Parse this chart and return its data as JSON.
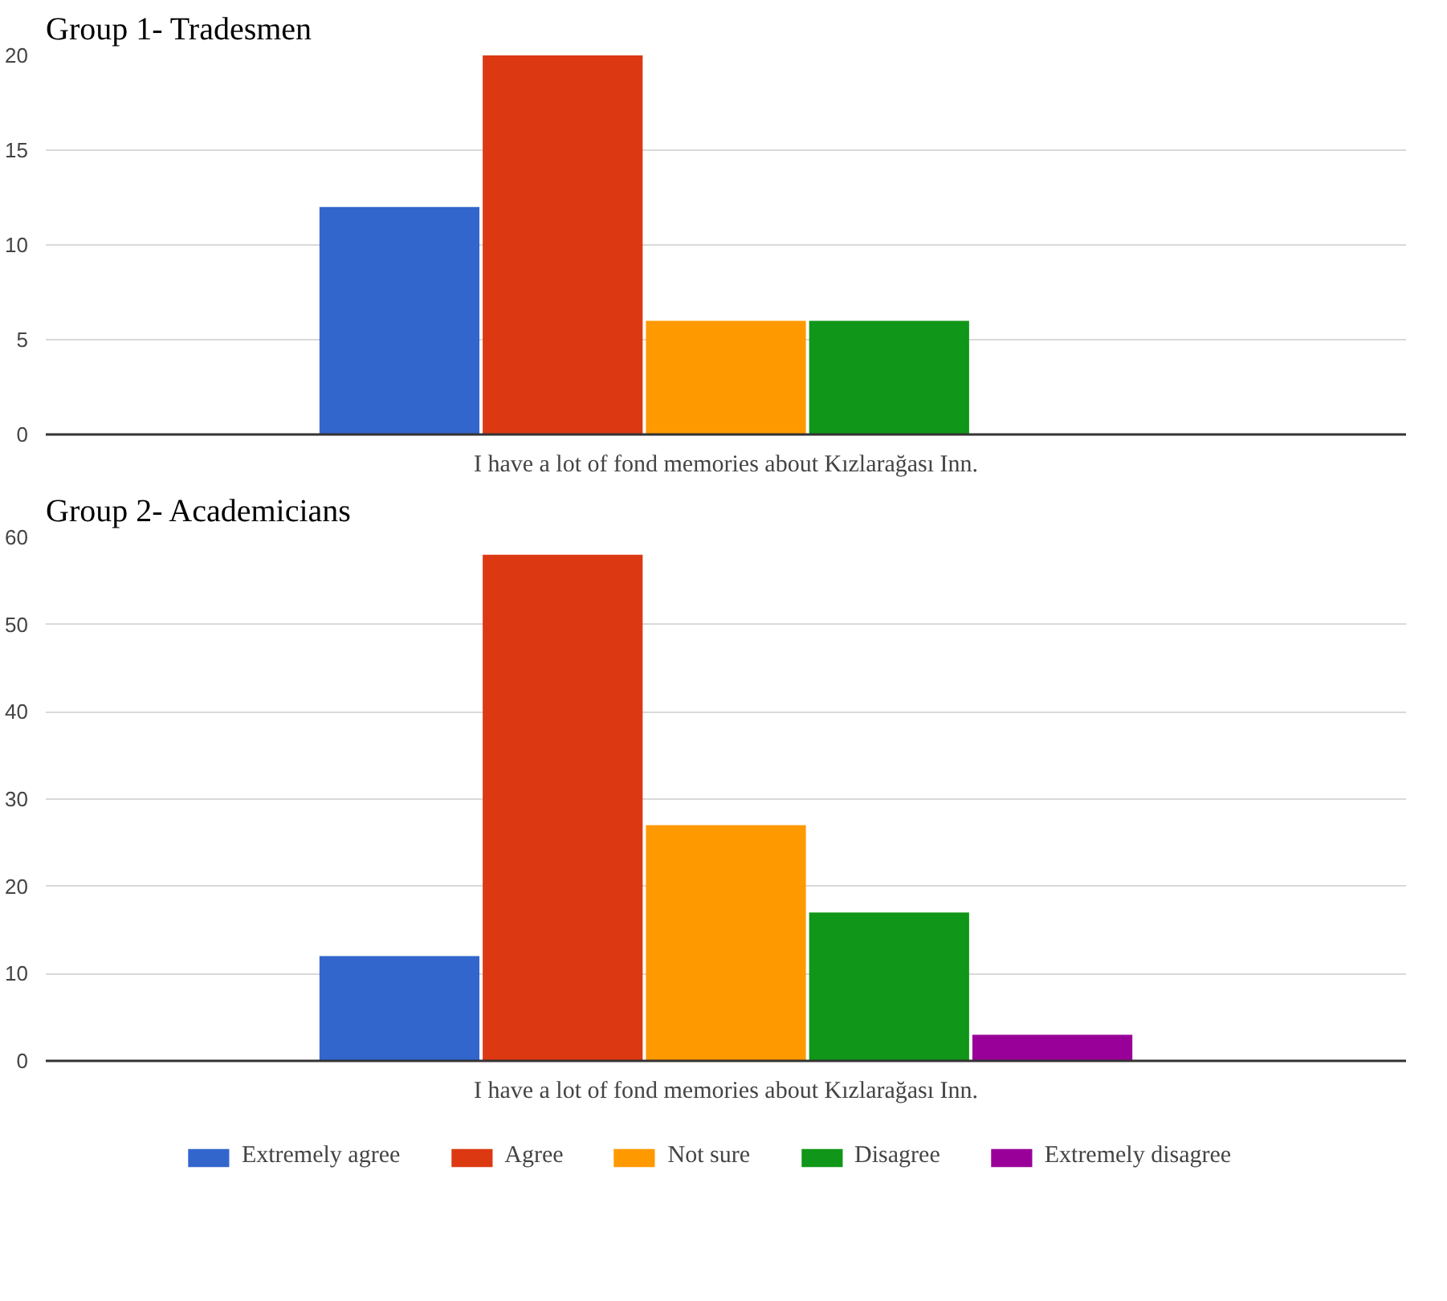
{
  "chart_data": [
    {
      "type": "bar",
      "title": "Group 1- Tradesmen",
      "categories": [
        "I have a lot of fond memories about Kızlarağası Inn."
      ],
      "ylim": [
        0,
        20
      ],
      "yticks": [
        0,
        5,
        10,
        15,
        20
      ],
      "grid": "y",
      "legend": false,
      "series": [
        {
          "color": "#3366cc",
          "values": [
            12
          ]
        },
        {
          "color": "#dc3912",
          "values": [
            20
          ]
        },
        {
          "color": "#ff9900",
          "values": [
            6
          ]
        },
        {
          "color": "#109618",
          "values": [
            6
          ]
        },
        {
          "color": "#990099",
          "values": [
            0
          ]
        }
      ]
    },
    {
      "type": "bar",
      "title": "Group 2- Academicians",
      "categories": [
        "I have a lot of fond memories about Kızlarağası Inn."
      ],
      "ylim": [
        0,
        60
      ],
      "yticks": [
        0,
        10,
        20,
        30,
        40,
        50,
        60
      ],
      "grid": "y",
      "legend": "bottom",
      "series": [
        {
          "name": "Extremely agree",
          "color": "#3366cc",
          "values": [
            12
          ]
        },
        {
          "name": "Agree",
          "color": "#dc3912",
          "values": [
            58
          ]
        },
        {
          "name": "Not sure",
          "color": "#ff9900",
          "values": [
            27
          ]
        },
        {
          "name": "Disagree",
          "color": "#109618",
          "values": [
            17
          ]
        },
        {
          "name": "Extremely disagree",
          "color": "#990099",
          "values": [
            3
          ]
        }
      ]
    }
  ]
}
